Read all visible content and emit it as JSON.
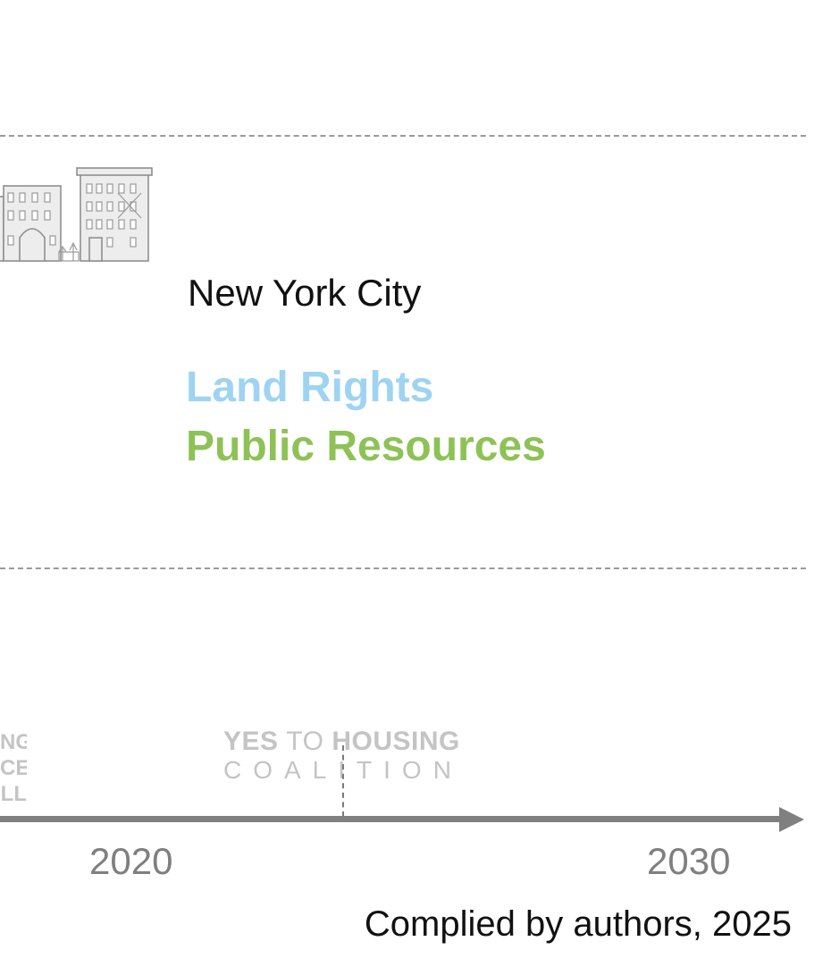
{
  "region": {
    "city": "New York City",
    "themes": [
      {
        "label": "Land Rights",
        "color": "#9ed4f2"
      },
      {
        "label": "Public Resources",
        "color": "#8ec256"
      }
    ]
  },
  "logos": {
    "partial_logo_lines": [
      "NG",
      "CE",
      "LL"
    ],
    "yes_to_housing": {
      "line1_yes": "YES",
      "line1_to": "TO",
      "line1_housing": "HOUSING",
      "line2": "COALITION"
    }
  },
  "timeline": {
    "ticks": [
      "2020",
      "2030"
    ],
    "axis_color": "#808080"
  },
  "caption": "Complied by authors, 2025",
  "icons": [
    "row-houses-illustration",
    "axis-arrow-icon"
  ]
}
